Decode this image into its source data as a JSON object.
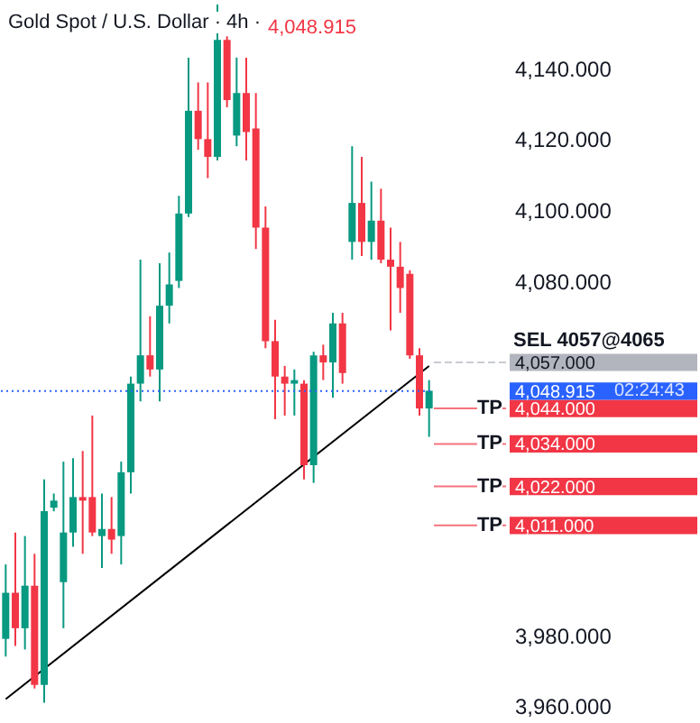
{
  "chart_data": {
    "type": "candlestick",
    "title": "Gold Spot / U.S. Dollar · 4h ·",
    "subtitle": "4,048.915",
    "categories": [
      null,
      null,
      null,
      null,
      null,
      null,
      null,
      null,
      null,
      null,
      null,
      null,
      null,
      null,
      null,
      null,
      null,
      null,
      null,
      null,
      null,
      null,
      null,
      null,
      null,
      null,
      null,
      null,
      null,
      null,
      null,
      null,
      null,
      null,
      null,
      null,
      null,
      null,
      null,
      null,
      null,
      null,
      null,
      null,
      null
    ],
    "annotations": [
      "02:24:43"
    ],
    "ohlc": [
      [
        3979,
        4000,
        3974,
        3992
      ],
      [
        3992,
        4009,
        3977,
        3982
      ],
      [
        3982,
        4008,
        3976,
        3994
      ],
      [
        3994,
        4003,
        3965,
        3966
      ],
      [
        3966,
        4024,
        3961,
        4015
      ],
      [
        4016,
        4020,
        4015,
        4018
      ],
      [
        3995,
        4029,
        3982,
        4009
      ],
      [
        4009,
        4030,
        4005,
        4019
      ],
      [
        4019,
        4032,
        4003,
        4018
      ],
      [
        4019,
        4042,
        4008,
        4009
      ],
      [
        4008,
        4020,
        3999,
        4010
      ],
      [
        4010,
        4019,
        4003,
        4007
      ],
      [
        4008,
        4029,
        4000,
        4026
      ],
      [
        4026,
        4053,
        4020,
        4051
      ],
      [
        4051,
        4086,
        4046,
        4059
      ],
      [
        4059,
        4070,
        4053,
        4055
      ],
      [
        4055,
        4085,
        4046,
        4073
      ],
      [
        4073,
        4088,
        4068,
        4079
      ],
      [
        4080,
        4104,
        4078,
        4099
      ],
      [
        4099,
        4143,
        4098,
        4128
      ],
      [
        4128,
        4136,
        4117,
        4120
      ],
      [
        4120,
        4136,
        4109,
        4115
      ],
      [
        4115,
        4158,
        4114,
        4148
      ],
      [
        4148,
        4149,
        4129,
        4131
      ],
      [
        4121,
        4143,
        4118,
        4133
      ],
      [
        4133,
        4143,
        4114,
        4122
      ],
      [
        4123,
        4133,
        4089,
        4095
      ],
      [
        4095,
        4101,
        4061,
        4063
      ],
      [
        4063,
        4069,
        4041,
        4053
      ],
      [
        4053,
        4056,
        4042,
        4051
      ],
      [
        4051,
        4055,
        4042,
        4052
      ],
      [
        4051,
        4052,
        4024,
        4028
      ],
      [
        4028,
        4060,
        4023,
        4059
      ],
      [
        4059,
        4062,
        4052,
        4057
      ],
      [
        4057,
        4071,
        4047,
        4068
      ],
      [
        4068,
        4071,
        4051,
        4054
      ],
      [
        4091,
        4118,
        4086,
        4102
      ],
      [
        4102,
        4115,
        4087,
        4091
      ],
      [
        4091,
        4108,
        4086,
        4097
      ],
      [
        4097,
        4106,
        4085,
        4086
      ],
      [
        4086,
        4095,
        4066,
        4084
      ],
      [
        4084,
        4091,
        4071,
        4078
      ],
      [
        4082,
        4083,
        4058,
        4059
      ],
      [
        4059,
        4061,
        4042,
        4044
      ],
      [
        4044,
        4052,
        4036,
        4049
      ]
    ],
    "colors": [
      "#089981",
      "#f23645",
      "#089981",
      "#f23645",
      "#089981",
      "#089981",
      "#089981",
      "#089981",
      "#f23645",
      "#f23645",
      "#089981",
      "#f23645",
      "#089981",
      "#089981",
      "#089981",
      "#f23645",
      "#089981",
      "#089981",
      "#089981",
      "#089981",
      "#f23645",
      "#f23645",
      "#089981",
      "#f23645",
      "#089981",
      "#f23645",
      "#f23645",
      "#f23645",
      "#f23645",
      "#f23645",
      "#089981",
      "#f23645",
      "#089981",
      "#f23645",
      "#089981",
      "#f23645",
      "#089981",
      "#f23645",
      "#089981",
      "#f23645",
      "#f23645",
      "#f23645",
      "#f23645",
      "#f23645",
      "#089981"
    ],
    "series": [
      {
        "type": "line",
        "values": [
          3962,
          null,
          null,
          null,
          null,
          null,
          null,
          null,
          null,
          null,
          null,
          null,
          null,
          null,
          null,
          null,
          null,
          null,
          null,
          null,
          null,
          null,
          null,
          null,
          null,
          null,
          null,
          null,
          null,
          null,
          null,
          null,
          null,
          null,
          null,
          null,
          null,
          null,
          null,
          null,
          null,
          null,
          null,
          null,
          4056
        ],
        "color": "#000000"
      }
    ],
    "ylim": [
      3955,
      4159
    ],
    "yticks": [
      {
        "value": 3960,
        "label": "3,960.000"
      },
      {
        "value": 3980,
        "label": "3,980.000"
      },
      {
        "value": 4011,
        "label": "4,011.000"
      },
      {
        "value": 4022,
        "label": "4,022.000"
      },
      {
        "value": 4034,
        "label": "4,034.000"
      },
      {
        "value": 4044,
        "label": "4,044.000"
      },
      {
        "value": 4048.915,
        "label": "4,048.915"
      },
      {
        "value": 4057,
        "label": "4,057.000"
      },
      {
        "value": 4080,
        "label": "4,080.000"
      },
      {
        "value": 4100,
        "label": "4,100.000"
      },
      {
        "value": 4120,
        "label": "4,120.000"
      },
      {
        "value": 4140,
        "label": "4,140.000"
      }
    ],
    "tick_labels": "y",
    "ref_lines": [
      {
        "axis": "y",
        "value": 4057,
        "label": "SEL 4057@4065",
        "color": "#b2b5be",
        "line_style": "dashed"
      },
      {
        "axis": "y",
        "value": 4048.915,
        "color": "#2962ff",
        "line_style": "dotted"
      },
      {
        "axis": "y",
        "value": 4044,
        "label": "TP",
        "color": "#f23645",
        "line_style": "solid"
      },
      {
        "axis": "y",
        "value": 4034,
        "label": "TP",
        "color": "#f23645",
        "line_style": "solid"
      },
      {
        "axis": "y",
        "value": 4022,
        "label": "TP",
        "color": "#f23645",
        "line_style": "solid"
      },
      {
        "axis": "y",
        "value": 4011,
        "label": "TP",
        "color": "#f23645",
        "line_style": "solid"
      }
    ]
  }
}
